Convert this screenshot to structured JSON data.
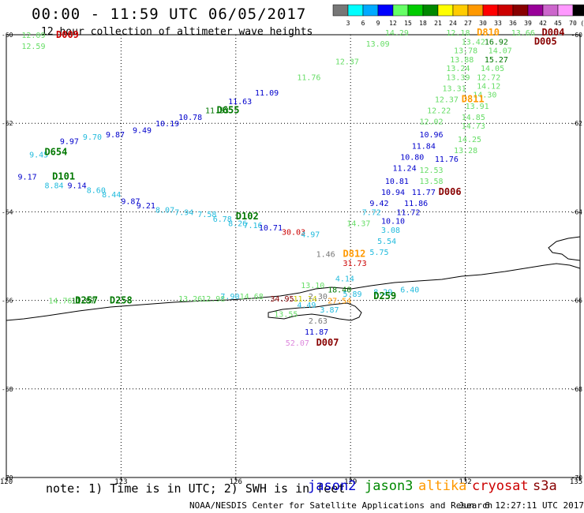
{
  "chart_data": {
    "type": "scatter",
    "title": "00:00 - 11:59 UTC 06/05/2017",
    "subtitle": "12 hour collection of altimeter wave heights",
    "legend_bins": [
      "3",
      "6",
      "9",
      "12",
      "15",
      "18",
      "21",
      "24",
      "27",
      "30",
      "33",
      "36",
      "39",
      "42",
      "45",
      "70"
    ],
    "legend_unit": "(ft)",
    "legend_colors": [
      "#777777",
      "#00ffff",
      "#00aaff",
      "#0000ff",
      "#66ff66",
      "#00cc00",
      "#008800",
      "#ffff00",
      "#ffcc00",
      "#ff9900",
      "#ff0000",
      "#cc0000",
      "#880000",
      "#990099",
      "#cc66cc",
      "#ff99ff",
      "#000000"
    ],
    "xlim": [
      120,
      135
    ],
    "ylim": [
      -70,
      -60
    ],
    "x_ticks": [
      120,
      123,
      126,
      129,
      132,
      135
    ],
    "y_ticks": [
      -60,
      -62,
      -64,
      -66,
      -68,
      -70
    ],
    "grid": true,
    "series_text_colors": {
      "lightgreen": "#66dd66",
      "green": "#007700",
      "blue": "#0000cc",
      "cyan": "#22bbdd",
      "red": "#cc0000",
      "darkred": "#880000",
      "orange": "#ff9900",
      "yellow": "#cccc00",
      "gray": "#777777",
      "pink": "#dd88dd"
    },
    "annotations": [
      {
        "x": 120.4,
        "y": -60.0,
        "text": "12.09",
        "c": "lightgreen"
      },
      {
        "x": 120.4,
        "y": -60.25,
        "text": "12.59",
        "c": "lightgreen"
      },
      {
        "x": 121.3,
        "y": -60.0,
        "text": "D009",
        "c": "red",
        "label": true
      },
      {
        "x": 120.3,
        "y": -63.2,
        "text": "9.17",
        "c": "blue"
      },
      {
        "x": 121.2,
        "y": -63.2,
        "text": "D101",
        "c": "green",
        "label": true
      },
      {
        "x": 121.0,
        "y": -63.4,
        "text": "8.84",
        "c": "cyan"
      },
      {
        "x": 121.6,
        "y": -63.4,
        "text": "9.14",
        "c": "blue"
      },
      {
        "x": 122.1,
        "y": -63.5,
        "text": "8.60",
        "c": "cyan"
      },
      {
        "x": 122.5,
        "y": -63.6,
        "text": "8.44",
        "c": "cyan"
      },
      {
        "x": 123.0,
        "y": -63.75,
        "text": "9.87",
        "c": "blue"
      },
      {
        "x": 123.4,
        "y": -63.85,
        "text": "9.21",
        "c": "blue"
      },
      {
        "x": 123.9,
        "y": -63.95,
        "text": "8.07",
        "c": "cyan"
      },
      {
        "x": 124.4,
        "y": -64.0,
        "text": "7.94",
        "c": "cyan"
      },
      {
        "x": 125.0,
        "y": -64.05,
        "text": "7.58",
        "c": "cyan"
      },
      {
        "x": 125.4,
        "y": -64.15,
        "text": "6.78",
        "c": "cyan"
      },
      {
        "x": 126.0,
        "y": -64.1,
        "text": "D102",
        "c": "green",
        "label": true
      },
      {
        "x": 125.8,
        "y": -64.25,
        "text": "8.26",
        "c": "cyan"
      },
      {
        "x": 126.2,
        "y": -64.3,
        "text": "7.16",
        "c": "cyan"
      },
      {
        "x": 126.6,
        "y": -64.35,
        "text": "10.71",
        "c": "blue"
      },
      {
        "x": 127.2,
        "y": -64.45,
        "text": "30.03",
        "c": "red"
      },
      {
        "x": 127.7,
        "y": -64.5,
        "text": "4.97",
        "c": "cyan"
      },
      {
        "x": 120.6,
        "y": -62.7,
        "text": "9.45",
        "c": "cyan"
      },
      {
        "x": 121.0,
        "y": -62.65,
        "text": "D654",
        "c": "green",
        "label": true
      },
      {
        "x": 121.4,
        "y": -62.4,
        "text": "9.97",
        "c": "blue"
      },
      {
        "x": 122.0,
        "y": -62.3,
        "text": "9.70",
        "c": "cyan"
      },
      {
        "x": 122.6,
        "y": -62.25,
        "text": "9.87",
        "c": "blue"
      },
      {
        "x": 123.3,
        "y": -62.15,
        "text": "9.49",
        "c": "blue"
      },
      {
        "x": 123.9,
        "y": -62.0,
        "text": "10.19",
        "c": "blue"
      },
      {
        "x": 124.5,
        "y": -61.85,
        "text": "10.78",
        "c": "blue"
      },
      {
        "x": 125.2,
        "y": -61.7,
        "text": "11.53",
        "c": "green"
      },
      {
        "x": 125.5,
        "y": -61.7,
        "text": "D655",
        "c": "green",
        "label": true
      },
      {
        "x": 125.8,
        "y": -61.5,
        "text": "11.63",
        "c": "blue"
      },
      {
        "x": 126.5,
        "y": -61.3,
        "text": "11.09",
        "c": "blue"
      },
      {
        "x": 127.6,
        "y": -60.95,
        "text": "11.76",
        "c": "lightgreen"
      },
      {
        "x": 128.6,
        "y": -60.6,
        "text": "12.37",
        "c": "lightgreen"
      },
      {
        "x": 129.4,
        "y": -60.2,
        "text": "13.09",
        "c": "lightgreen"
      },
      {
        "x": 129.9,
        "y": -59.95,
        "text": "14.29",
        "c": "lightgreen"
      },
      {
        "x": 131.5,
        "y": -59.95,
        "text": "12.18",
        "c": "lightgreen"
      },
      {
        "x": 132.3,
        "y": -59.95,
        "text": "D810",
        "c": "orange",
        "label": true
      },
      {
        "x": 133.2,
        "y": -59.95,
        "text": "13.66",
        "c": "lightgreen"
      },
      {
        "x": 134.0,
        "y": -59.95,
        "text": "D004",
        "c": "darkred",
        "label": true
      },
      {
        "x": 131.9,
        "y": -60.15,
        "text": "13.42",
        "c": "lightgreen"
      },
      {
        "x": 132.5,
        "y": -60.15,
        "text": "16.92",
        "c": "green"
      },
      {
        "x": 133.8,
        "y": -60.15,
        "text": "D005",
        "c": "darkred",
        "label": true
      },
      {
        "x": 131.7,
        "y": -60.35,
        "text": "13.78",
        "c": "lightgreen"
      },
      {
        "x": 132.6,
        "y": -60.35,
        "text": "14.07",
        "c": "lightgreen"
      },
      {
        "x": 131.6,
        "y": -60.55,
        "text": "13.88",
        "c": "lightgreen"
      },
      {
        "x": 132.5,
        "y": -60.55,
        "text": "15.27",
        "c": "green"
      },
      {
        "x": 131.5,
        "y": -60.75,
        "text": "13.24",
        "c": "lightgreen"
      },
      {
        "x": 132.4,
        "y": -60.75,
        "text": "14.05",
        "c": "lightgreen"
      },
      {
        "x": 131.5,
        "y": -60.95,
        "text": "13.39",
        "c": "lightgreen"
      },
      {
        "x": 132.3,
        "y": -60.95,
        "text": "12.72",
        "c": "lightgreen"
      },
      {
        "x": 131.4,
        "y": -61.2,
        "text": "13.31",
        "c": "lightgreen"
      },
      {
        "x": 132.3,
        "y": -61.15,
        "text": "14.12",
        "c": "lightgreen"
      },
      {
        "x": 131.2,
        "y": -61.45,
        "text": "12.37",
        "c": "lightgreen"
      },
      {
        "x": 132.2,
        "y": -61.35,
        "text": "14.30",
        "c": "lightgreen"
      },
      {
        "x": 131.9,
        "y": -61.45,
        "text": "D811",
        "c": "orange",
        "label": true
      },
      {
        "x": 131.0,
        "y": -61.7,
        "text": "12.22",
        "c": "lightgreen"
      },
      {
        "x": 132.0,
        "y": -61.6,
        "text": "13.91",
        "c": "lightgreen"
      },
      {
        "x": 130.8,
        "y": -61.95,
        "text": "12.02",
        "c": "lightgreen"
      },
      {
        "x": 131.9,
        "y": -61.85,
        "text": "14.85",
        "c": "lightgreen"
      },
      {
        "x": 131.9,
        "y": -62.05,
        "text": "14.73",
        "c": "lightgreen"
      },
      {
        "x": 130.8,
        "y": -62.25,
        "text": "10.96",
        "c": "blue"
      },
      {
        "x": 131.8,
        "y": -62.35,
        "text": "14.25",
        "c": "lightgreen"
      },
      {
        "x": 130.6,
        "y": -62.5,
        "text": "11.84",
        "c": "blue"
      },
      {
        "x": 131.7,
        "y": -62.6,
        "text": "13.28",
        "c": "lightgreen"
      },
      {
        "x": 130.3,
        "y": -62.75,
        "text": "10.80",
        "c": "blue"
      },
      {
        "x": 131.2,
        "y": -62.8,
        "text": "11.76",
        "c": "blue"
      },
      {
        "x": 130.1,
        "y": -63.0,
        "text": "11.24",
        "c": "blue"
      },
      {
        "x": 130.8,
        "y": -63.05,
        "text": "12.53",
        "c": "lightgreen"
      },
      {
        "x": 129.9,
        "y": -63.3,
        "text": "10.81",
        "c": "blue"
      },
      {
        "x": 130.8,
        "y": -63.3,
        "text": "13.58",
        "c": "lightgreen"
      },
      {
        "x": 129.8,
        "y": -63.55,
        "text": "10.94",
        "c": "blue"
      },
      {
        "x": 130.6,
        "y": -63.55,
        "text": "11.77",
        "c": "blue"
      },
      {
        "x": 131.3,
        "y": -63.55,
        "text": "D006",
        "c": "darkred",
        "label": true
      },
      {
        "x": 129.5,
        "y": -63.8,
        "text": "9.42",
        "c": "blue"
      },
      {
        "x": 130.4,
        "y": -63.8,
        "text": "11.86",
        "c": "blue"
      },
      {
        "x": 129.3,
        "y": -64.0,
        "text": "7.72",
        "c": "cyan"
      },
      {
        "x": 130.2,
        "y": -64.0,
        "text": "11.72",
        "c": "blue"
      },
      {
        "x": 128.9,
        "y": -64.25,
        "text": "14.37",
        "c": "lightgreen"
      },
      {
        "x": 129.8,
        "y": -64.2,
        "text": "10.10",
        "c": "blue"
      },
      {
        "x": 129.8,
        "y": -64.4,
        "text": "3.08",
        "c": "cyan"
      },
      {
        "x": 129.7,
        "y": -64.65,
        "text": "5.54",
        "c": "cyan"
      },
      {
        "x": 129.5,
        "y": -64.9,
        "text": "5.75",
        "c": "cyan"
      },
      {
        "x": 128.1,
        "y": -64.95,
        "text": "1.46",
        "c": "gray"
      },
      {
        "x": 128.8,
        "y": -64.95,
        "text": "D812",
        "c": "orange",
        "label": true
      },
      {
        "x": 128.8,
        "y": -65.15,
        "text": "31.73",
        "c": "red"
      },
      {
        "x": 128.6,
        "y": -65.5,
        "text": "4.14",
        "c": "cyan"
      },
      {
        "x": 127.7,
        "y": -65.65,
        "text": "13.10",
        "c": "lightgreen"
      },
      {
        "x": 128.4,
        "y": -65.75,
        "text": "18.40",
        "c": "green"
      },
      {
        "x": 128.8,
        "y": -65.85,
        "text": "5.89",
        "c": "cyan"
      },
      {
        "x": 129.6,
        "y": -65.8,
        "text": "8.29",
        "c": "cyan"
      },
      {
        "x": 130.3,
        "y": -65.75,
        "text": "6.40",
        "c": "cyan"
      },
      {
        "x": 129.6,
        "y": -65.9,
        "text": "D259",
        "c": "green",
        "label": true
      },
      {
        "x": 126.9,
        "y": -65.95,
        "text": "34.95",
        "c": "darkred"
      },
      {
        "x": 127.5,
        "y": -65.95,
        "text": "11.14",
        "c": "yellow"
      },
      {
        "x": 127.9,
        "y": -65.9,
        "text": "2.30",
        "c": "gray"
      },
      {
        "x": 128.4,
        "y": -66.0,
        "text": "27.54",
        "c": "orange"
      },
      {
        "x": 127.6,
        "y": -66.1,
        "text": "4.49",
        "c": "cyan"
      },
      {
        "x": 128.2,
        "y": -66.2,
        "text": "3.87",
        "c": "cyan"
      },
      {
        "x": 127.0,
        "y": -66.3,
        "text": "13.55",
        "c": "lightgreen"
      },
      {
        "x": 127.9,
        "y": -66.45,
        "text": "2.63",
        "c": "gray"
      },
      {
        "x": 127.8,
        "y": -66.7,
        "text": "11.87",
        "c": "blue"
      },
      {
        "x": 127.3,
        "y": -66.95,
        "text": "52.07",
        "c": "pink"
      },
      {
        "x": 128.1,
        "y": -66.95,
        "text": "D007",
        "c": "darkred",
        "label": true
      },
      {
        "x": 121.1,
        "y": -66.0,
        "text": "14.76",
        "c": "lightgreen"
      },
      {
        "x": 121.7,
        "y": -66.0,
        "text": "11.87",
        "c": "green"
      },
      {
        "x": 121.8,
        "y": -66.0,
        "text": "D257",
        "c": "green",
        "label": true
      },
      {
        "x": 122.7,
        "y": -66.0,
        "text": "D258",
        "c": "green",
        "label": true
      },
      {
        "x": 124.5,
        "y": -65.95,
        "text": "13.26",
        "c": "lightgreen"
      },
      {
        "x": 125.1,
        "y": -65.95,
        "text": "12.98",
        "c": "lightgreen"
      },
      {
        "x": 125.6,
        "y": -65.9,
        "text": "7.90",
        "c": "cyan"
      },
      {
        "x": 126.1,
        "y": -65.9,
        "text": "14.68",
        "c": "lightgreen"
      }
    ]
  },
  "footer": {
    "note": "note: 1) Time is in UTC; 2) SWH is in feet",
    "satellites": [
      {
        "name": "jason2",
        "color": "#0000cc"
      },
      {
        "name": "jason3",
        "color": "#008800"
      },
      {
        "name": "altika",
        "color": "#ff9900"
      },
      {
        "name": "cryosat",
        "color": "#cc0000"
      },
      {
        "name": "s3a",
        "color": "#880000"
      }
    ],
    "credit": "NOAA/NESDIS Center for Satellite Applications and Research",
    "timestamp": "Jun  6 12:27:11 UTC 2017"
  }
}
